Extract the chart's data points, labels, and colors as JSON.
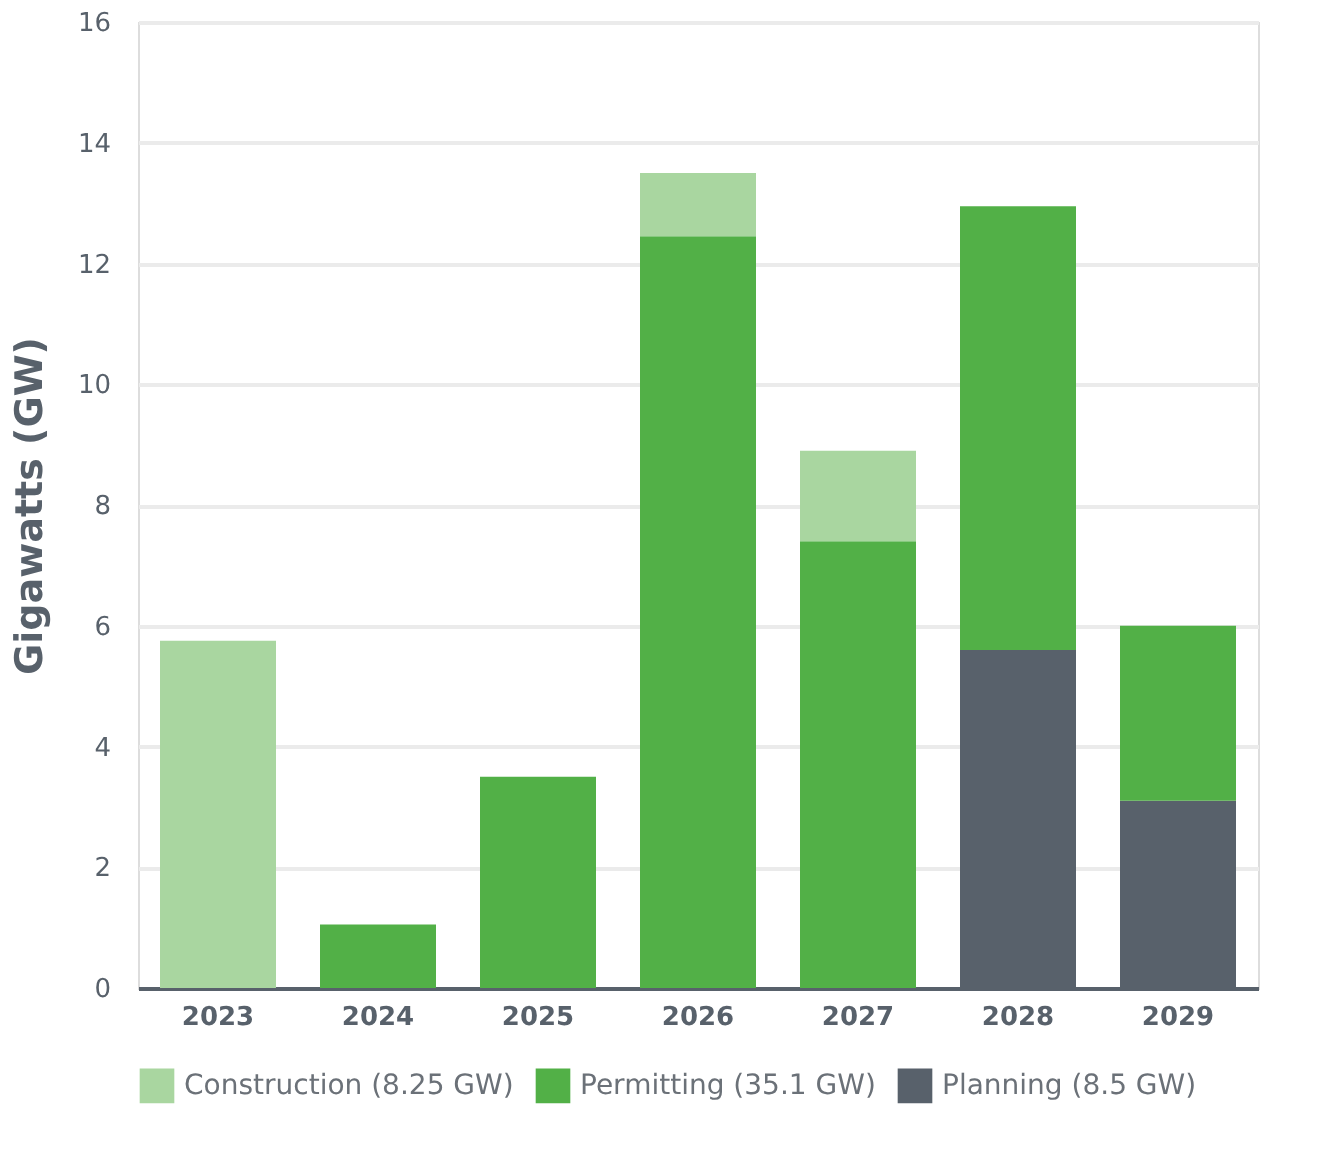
{
  "chart_data": {
    "type": "bar",
    "stacked": true,
    "ylabel": "Gigawatts (GW)",
    "categories": [
      "2023",
      "2024",
      "2025",
      "2026",
      "2027",
      "2028",
      "2029"
    ],
    "series": [
      {
        "name": "Planning (8.5 GW)",
        "color": "#58616b",
        "values": [
          0,
          0,
          0,
          0,
          0,
          5.6,
          3.1
        ]
      },
      {
        "name": "Permitting (35.1 GW)",
        "color": "#52b047",
        "values": [
          0,
          1.05,
          3.5,
          12.45,
          7.4,
          7.35,
          2.9
        ]
      },
      {
        "name": "Construction (8.25 GW)",
        "color": "#a9d6a0",
        "values": [
          5.75,
          0,
          0,
          1.05,
          1.5,
          0,
          0
        ]
      }
    ],
    "ylim": [
      0,
      16
    ],
    "yticks": [
      0,
      2,
      4,
      6,
      8,
      10,
      12,
      14,
      16
    ],
    "grid": "y",
    "legend": "bottom"
  }
}
